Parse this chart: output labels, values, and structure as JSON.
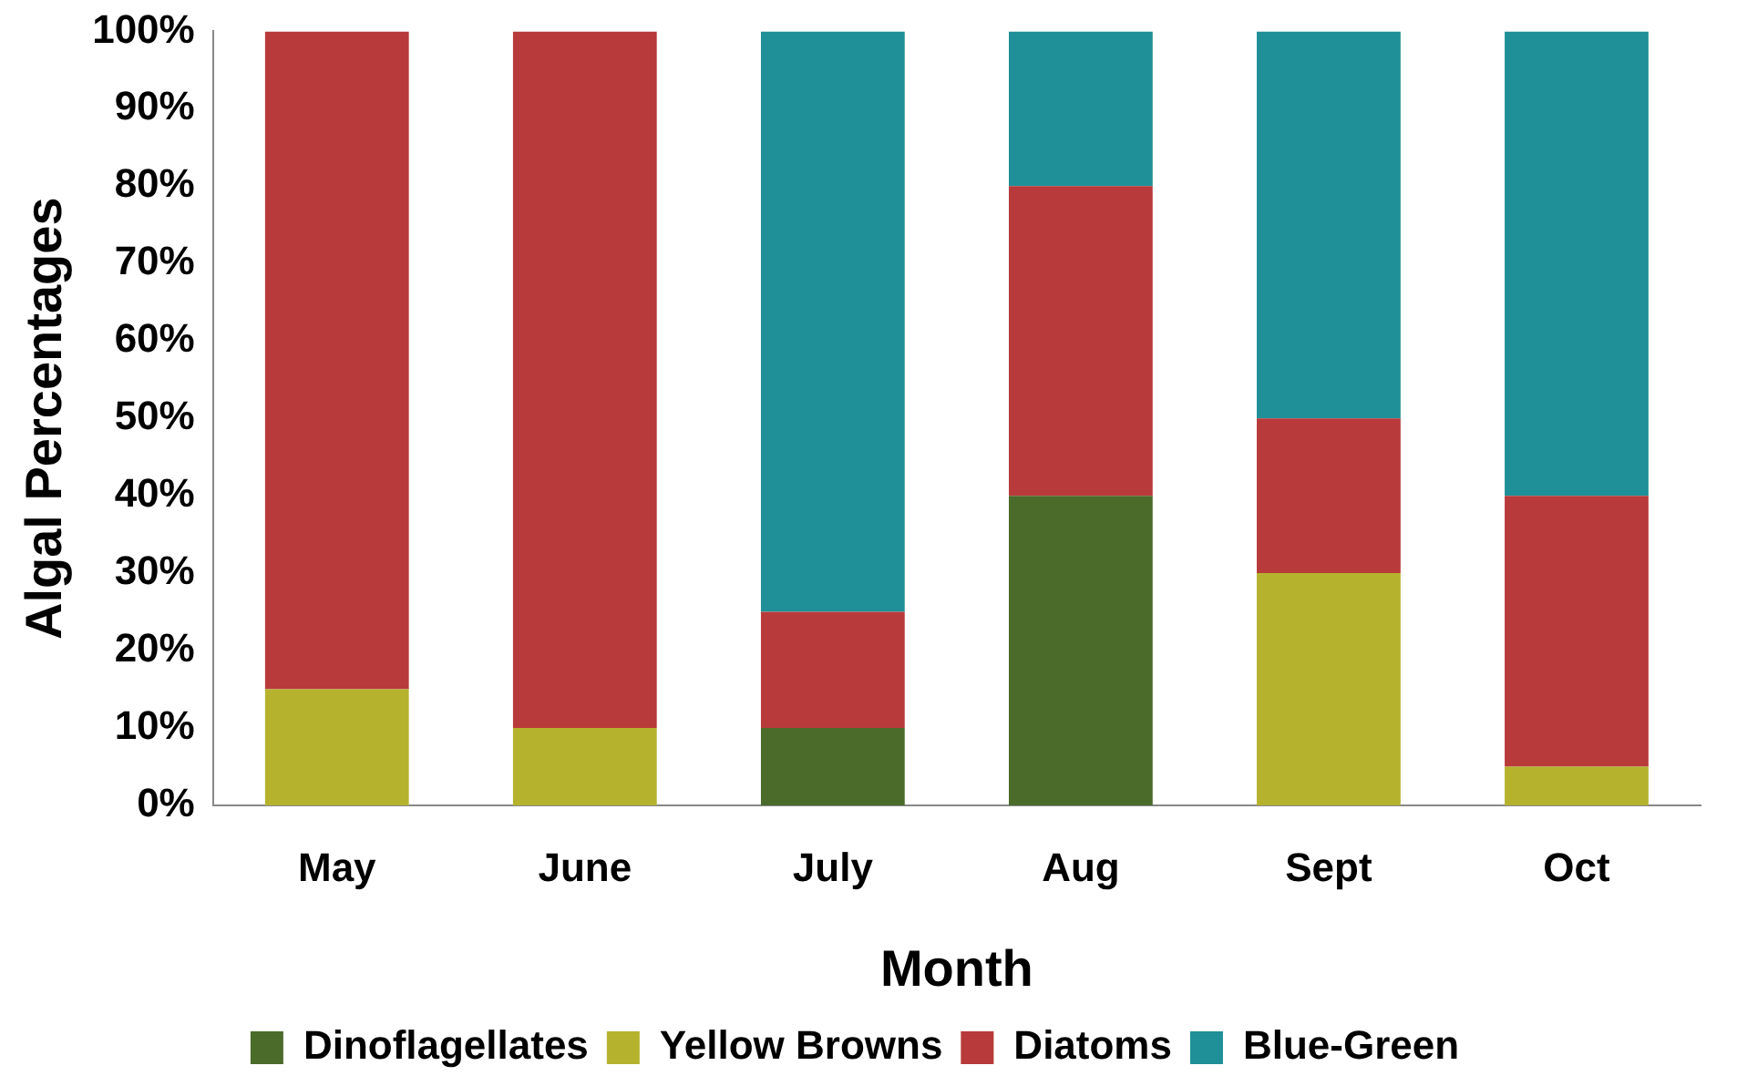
{
  "chart_data": {
    "type": "bar",
    "stacked": true,
    "xlabel": "Month",
    "ylabel": "Algal Percentages",
    "categories": [
      "May",
      "June",
      "July",
      "Aug",
      "Sept",
      "Oct"
    ],
    "series": [
      {
        "name": "Dinoflagellates",
        "color": "#4a6b2a",
        "values": [
          0,
          0,
          10,
          40,
          0,
          0
        ]
      },
      {
        "name": "Yellow Browns",
        "color": "#b5b32e",
        "values": [
          15,
          10,
          0,
          0,
          30,
          5
        ]
      },
      {
        "name": "Diatoms",
        "color": "#b83a3a",
        "values": [
          85,
          90,
          15,
          40,
          20,
          35
        ]
      },
      {
        "name": "Blue-Green",
        "color": "#1f8f98",
        "values": [
          0,
          0,
          75,
          20,
          50,
          60
        ]
      }
    ],
    "ylim": [
      0,
      100
    ],
    "yticks": [
      {
        "value": 0,
        "label": "0%"
      },
      {
        "value": 10,
        "label": "10%"
      },
      {
        "value": 20,
        "label": "20%"
      },
      {
        "value": 30,
        "label": "30%"
      },
      {
        "value": 40,
        "label": "40%"
      },
      {
        "value": 50,
        "label": "50%"
      },
      {
        "value": 60,
        "label": "60%"
      },
      {
        "value": 70,
        "label": "70%"
      },
      {
        "value": 80,
        "label": "80%"
      },
      {
        "value": 90,
        "label": "90%"
      },
      {
        "value": 100,
        "label": "100%"
      }
    ],
    "grid": false,
    "legend": "bottom"
  }
}
